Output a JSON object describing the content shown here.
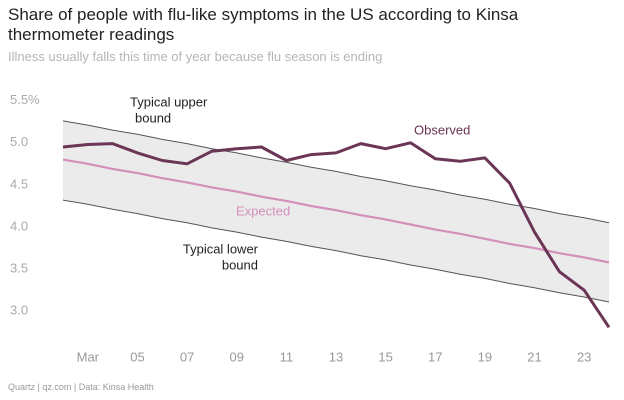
{
  "chart_data": {
    "type": "line",
    "title": "Share of people with flu-like symptoms in the US according to Kinsa thermometer readings",
    "subtitle": "Illness usually falls this time of year because flu season is ending",
    "source": "Quartz | qz.com | Data: Kinsa Health",
    "x": [
      2,
      3,
      4,
      5,
      6,
      7,
      8,
      9,
      10,
      11,
      12,
      13,
      14,
      15,
      16,
      17,
      18,
      19,
      20,
      21,
      22,
      23,
      24
    ],
    "xlim": [
      2,
      24
    ],
    "xticks": [
      {
        "value": 3,
        "label": "Mar"
      },
      {
        "value": 5,
        "label": "05"
      },
      {
        "value": 7,
        "label": "07"
      },
      {
        "value": 9,
        "label": "09"
      },
      11,
      13,
      15,
      17,
      19,
      21,
      23
    ],
    "ylim": [
      2.6,
      5.65
    ],
    "yticks": [
      {
        "value": 5.5,
        "label": "5.5%"
      },
      {
        "value": 5,
        "label": "5.0"
      },
      4.5,
      {
        "value": 4,
        "label": "4.0"
      },
      3.5,
      {
        "value": 3,
        "label": "3.0"
      }
    ],
    "grid": false,
    "band": {
      "color": "#ebebeb",
      "line_color": "#555555",
      "upper": [
        5.26,
        5.21,
        5.15,
        5.1,
        5.04,
        4.99,
        4.93,
        4.88,
        4.82,
        4.77,
        4.71,
        4.66,
        4.6,
        4.55,
        4.49,
        4.44,
        4.38,
        4.33,
        4.27,
        4.22,
        4.16,
        4.11,
        4.05
      ],
      "lower": [
        4.32,
        4.27,
        4.21,
        4.16,
        4.1,
        4.05,
        3.99,
        3.94,
        3.88,
        3.83,
        3.77,
        3.72,
        3.66,
        3.61,
        3.55,
        3.5,
        3.44,
        3.39,
        3.33,
        3.28,
        3.22,
        3.17,
        3.11
      ]
    },
    "series": [
      {
        "name": "Expected",
        "color": "#d48fbb",
        "values": [
          4.8,
          4.75,
          4.69,
          4.64,
          4.58,
          4.53,
          4.47,
          4.42,
          4.36,
          4.31,
          4.25,
          4.2,
          4.14,
          4.09,
          4.03,
          3.97,
          3.92,
          3.86,
          3.8,
          3.75,
          3.69,
          3.64,
          3.58
        ]
      },
      {
        "name": "Observed",
        "color": "#6b3556",
        "values": [
          4.95,
          4.98,
          4.99,
          4.88,
          4.79,
          4.75,
          4.9,
          4.93,
          4.95,
          4.79,
          4.86,
          4.88,
          4.99,
          4.93,
          5.0,
          4.81,
          4.78,
          4.82,
          4.52,
          3.94,
          3.47,
          3.25,
          2.81
        ]
      }
    ],
    "annotations": [
      {
        "text": [
          "Typical upper",
          "bound"
        ]
      },
      {
        "text": [
          "Typical lower",
          "bound"
        ]
      }
    ]
  }
}
